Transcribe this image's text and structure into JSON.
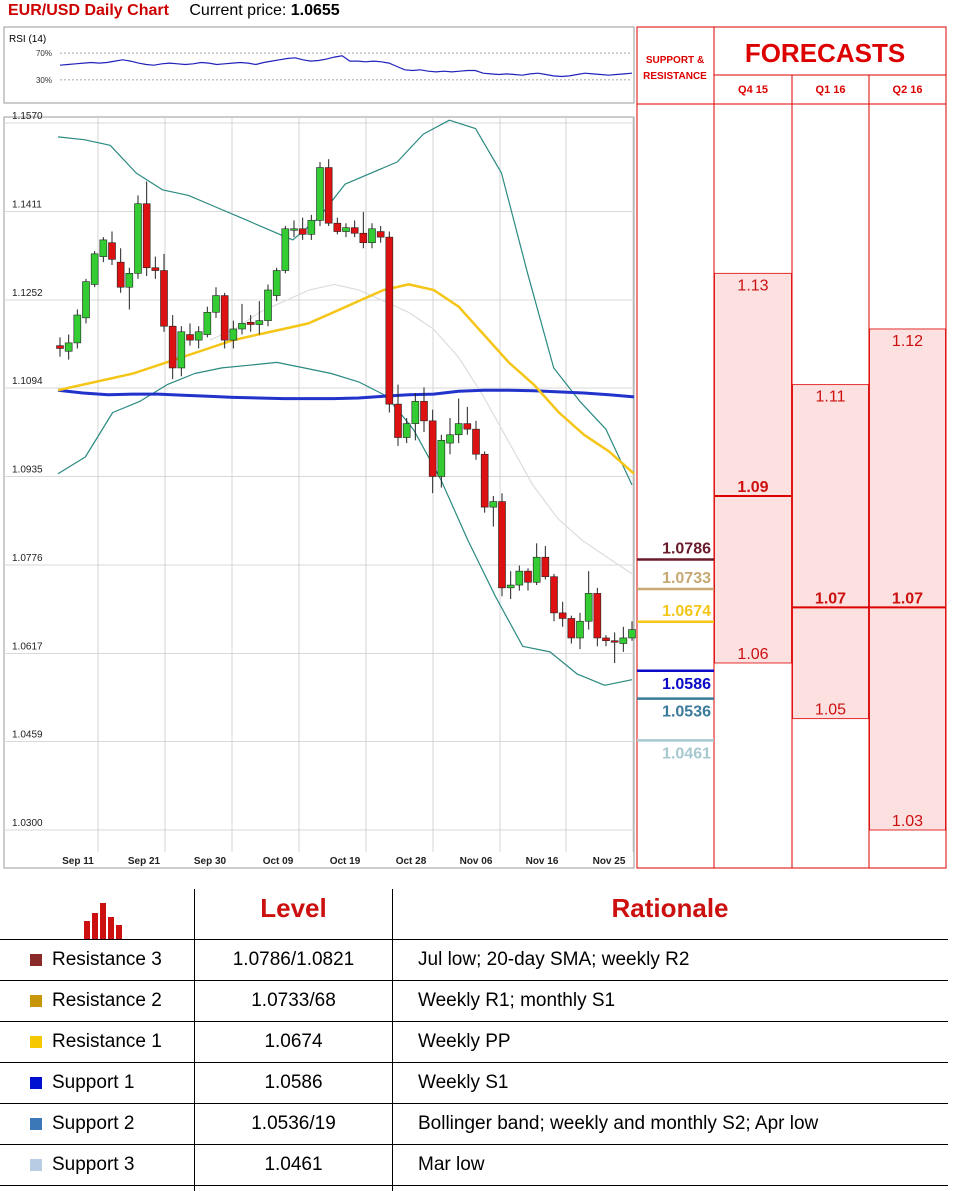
{
  "header": {
    "title": "EUR/USD Daily Chart",
    "price_label": "Current price:",
    "price_value": "1.0655"
  },
  "colors": {
    "bull": "#33cc33",
    "bear": "#dd1111",
    "sma_fast": "#f5c518",
    "sma_slow": "#2233cc",
    "bollinger": "#2a8a80",
    "forecast_red": "#dd0000",
    "forecast_fill": "#fde0e0"
  },
  "chart_data": [
    {
      "type": "line",
      "title": "RSI (14)",
      "y_tick_labels": [
        "70%",
        "30%"
      ],
      "ylim": [
        0,
        100
      ],
      "series": [
        {
          "values": [
            52,
            53,
            54,
            55,
            56,
            55,
            56,
            58,
            60,
            58,
            55,
            53,
            52,
            54,
            55,
            54,
            53,
            54,
            56,
            55,
            53,
            54,
            55,
            56,
            55,
            53,
            56,
            58,
            60,
            62,
            63,
            60,
            58,
            59,
            61,
            64,
            66,
            58,
            58,
            57,
            58,
            57,
            55,
            50,
            45,
            44,
            45,
            43,
            42,
            43,
            42,
            43,
            44,
            44,
            40,
            39,
            38,
            39,
            38,
            37,
            39,
            40,
            38,
            36,
            35,
            36,
            38,
            40,
            39,
            38,
            37,
            38,
            39,
            40
          ]
        }
      ]
    },
    {
      "type": "candlestick",
      "title": "",
      "x_tick_labels": [
        "Sep 11",
        "Sep 21",
        "Sep 30",
        "Oct 09",
        "Oct 19",
        "Oct 28",
        "Nov 06",
        "Nov 16",
        "Nov 25"
      ],
      "y_tick_labels": [
        "1.1570",
        "1.1411",
        "1.1252",
        "1.1094",
        "1.0935",
        "1.0776",
        "1.0617",
        "1.0459",
        "1.0300"
      ],
      "ylim": [
        1.03,
        1.157
      ],
      "candles": [
        {
          "o": 1.117,
          "h": 1.1185,
          "l": 1.115,
          "c": 1.1165
        },
        {
          "o": 1.116,
          "h": 1.119,
          "l": 1.1145,
          "c": 1.1175
        },
        {
          "o": 1.1175,
          "h": 1.1235,
          "l": 1.1165,
          "c": 1.1225
        },
        {
          "o": 1.122,
          "h": 1.129,
          "l": 1.121,
          "c": 1.1285
        },
        {
          "o": 1.128,
          "h": 1.134,
          "l": 1.1275,
          "c": 1.1335
        },
        {
          "o": 1.133,
          "h": 1.1365,
          "l": 1.132,
          "c": 1.136
        },
        {
          "o": 1.1355,
          "h": 1.1375,
          "l": 1.1315,
          "c": 1.1325
        },
        {
          "o": 1.132,
          "h": 1.1345,
          "l": 1.1265,
          "c": 1.1275
        },
        {
          "o": 1.1275,
          "h": 1.131,
          "l": 1.1235,
          "c": 1.13
        },
        {
          "o": 1.13,
          "h": 1.144,
          "l": 1.129,
          "c": 1.1425
        },
        {
          "o": 1.1425,
          "h": 1.1465,
          "l": 1.1295,
          "c": 1.131
        },
        {
          "o": 1.131,
          "h": 1.133,
          "l": 1.129,
          "c": 1.1305
        },
        {
          "o": 1.1305,
          "h": 1.1335,
          "l": 1.1195,
          "c": 1.1205
        },
        {
          "o": 1.1205,
          "h": 1.1225,
          "l": 1.111,
          "c": 1.113
        },
        {
          "o": 1.113,
          "h": 1.1205,
          "l": 1.1115,
          "c": 1.1195
        },
        {
          "o": 1.119,
          "h": 1.121,
          "l": 1.117,
          "c": 1.118
        },
        {
          "o": 1.118,
          "h": 1.1205,
          "l": 1.1165,
          "c": 1.1195
        },
        {
          "o": 1.119,
          "h": 1.124,
          "l": 1.1185,
          "c": 1.123
        },
        {
          "o": 1.123,
          "h": 1.1275,
          "l": 1.122,
          "c": 1.126
        },
        {
          "o": 1.126,
          "h": 1.1265,
          "l": 1.1165,
          "c": 1.118
        },
        {
          "o": 1.118,
          "h": 1.1215,
          "l": 1.1165,
          "c": 1.12
        },
        {
          "o": 1.12,
          "h": 1.1245,
          "l": 1.119,
          "c": 1.121
        },
        {
          "o": 1.1212,
          "h": 1.1225,
          "l": 1.1195,
          "c": 1.1208
        },
        {
          "o": 1.1208,
          "h": 1.125,
          "l": 1.119,
          "c": 1.1215
        },
        {
          "o": 1.1215,
          "h": 1.128,
          "l": 1.1205,
          "c": 1.127
        },
        {
          "o": 1.126,
          "h": 1.131,
          "l": 1.125,
          "c": 1.1305
        },
        {
          "o": 1.1305,
          "h": 1.1385,
          "l": 1.13,
          "c": 1.138
        },
        {
          "o": 1.1378,
          "h": 1.1395,
          "l": 1.1365,
          "c": 1.138
        },
        {
          "o": 1.138,
          "h": 1.14,
          "l": 1.136,
          "c": 1.137
        },
        {
          "o": 1.137,
          "h": 1.1405,
          "l": 1.136,
          "c": 1.1395
        },
        {
          "o": 1.1395,
          "h": 1.15,
          "l": 1.1385,
          "c": 1.149
        },
        {
          "o": 1.149,
          "h": 1.1505,
          "l": 1.1385,
          "c": 1.139
        },
        {
          "o": 1.139,
          "h": 1.14,
          "l": 1.137,
          "c": 1.1375
        },
        {
          "o": 1.1375,
          "h": 1.139,
          "l": 1.1365,
          "c": 1.1382
        },
        {
          "o": 1.1382,
          "h": 1.1395,
          "l": 1.1365,
          "c": 1.1372
        },
        {
          "o": 1.1372,
          "h": 1.141,
          "l": 1.1345,
          "c": 1.1355
        },
        {
          "o": 1.1355,
          "h": 1.139,
          "l": 1.1345,
          "c": 1.138
        },
        {
          "o": 1.1375,
          "h": 1.1385,
          "l": 1.1355,
          "c": 1.1365
        },
        {
          "o": 1.1365,
          "h": 1.1375,
          "l": 1.105,
          "c": 1.1065
        },
        {
          "o": 1.1065,
          "h": 1.11,
          "l": 1.099,
          "c": 1.1005
        },
        {
          "o": 1.1005,
          "h": 1.104,
          "l": 1.0995,
          "c": 1.103
        },
        {
          "o": 1.103,
          "h": 1.1085,
          "l": 1.1,
          "c": 1.107
        },
        {
          "o": 1.107,
          "h": 1.1095,
          "l": 1.1015,
          "c": 1.1035
        },
        {
          "o": 1.1035,
          "h": 1.1055,
          "l": 1.0905,
          "c": 1.0935
        },
        {
          "o": 1.0935,
          "h": 1.101,
          "l": 1.0915,
          "c": 1.1
        },
        {
          "o": 1.0995,
          "h": 1.104,
          "l": 1.0975,
          "c": 1.101
        },
        {
          "o": 1.101,
          "h": 1.1075,
          "l": 1.0995,
          "c": 1.103
        },
        {
          "o": 1.103,
          "h": 1.106,
          "l": 1.101,
          "c": 1.102
        },
        {
          "o": 1.102,
          "h": 1.1035,
          "l": 1.0965,
          "c": 1.0975
        },
        {
          "o": 1.0975,
          "h": 1.098,
          "l": 1.087,
          "c": 1.088
        },
        {
          "o": 1.088,
          "h": 1.09,
          "l": 1.0845,
          "c": 1.089
        },
        {
          "o": 1.089,
          "h": 1.0905,
          "l": 1.072,
          "c": 1.0735
        },
        {
          "o": 1.0735,
          "h": 1.0765,
          "l": 1.0715,
          "c": 1.074
        },
        {
          "o": 1.074,
          "h": 1.0775,
          "l": 1.073,
          "c": 1.0765
        },
        {
          "o": 1.0765,
          "h": 1.077,
          "l": 1.073,
          "c": 1.0745
        },
        {
          "o": 1.0745,
          "h": 1.0815,
          "l": 1.074,
          "c": 1.079
        },
        {
          "o": 1.079,
          "h": 1.081,
          "l": 1.075,
          "c": 1.0755
        },
        {
          "o": 1.0755,
          "h": 1.076,
          "l": 1.0675,
          "c": 1.069
        },
        {
          "o": 1.069,
          "h": 1.071,
          "l": 1.0665,
          "c": 1.068
        },
        {
          "o": 1.068,
          "h": 1.0685,
          "l": 1.0635,
          "c": 1.0645
        },
        {
          "o": 1.0645,
          "h": 1.069,
          "l": 1.0625,
          "c": 1.0675
        },
        {
          "o": 1.0675,
          "h": 1.0765,
          "l": 1.066,
          "c": 1.0725
        },
        {
          "o": 1.0725,
          "h": 1.0735,
          "l": 1.063,
          "c": 1.0645
        },
        {
          "o": 1.0645,
          "h": 1.065,
          "l": 1.063,
          "c": 1.064
        },
        {
          "o": 1.064,
          "h": 1.0655,
          "l": 1.06,
          "c": 1.0638
        },
        {
          "o": 1.0635,
          "h": 1.0665,
          "l": 1.062,
          "c": 1.0645
        },
        {
          "o": 1.0645,
          "h": 1.0675,
          "l": 1.064,
          "c": 1.066
        }
      ],
      "sma_fast": [
        1.109,
        1.11,
        1.111,
        1.112,
        1.1135,
        1.115,
        1.1165,
        1.118,
        1.119,
        1.12,
        1.121,
        1.123,
        1.125,
        1.127,
        1.128,
        1.127,
        1.124,
        1.119,
        1.114,
        1.11,
        1.105,
        1.101,
        1.098,
        1.094
      ],
      "sma_slow": [
        1.109,
        1.1085,
        1.1082,
        1.1083,
        1.1083,
        1.1081,
        1.1079,
        1.1077,
        1.1076,
        1.1075,
        1.1075,
        1.1075,
        1.1076,
        1.1079,
        1.1082,
        1.1083,
        1.1088,
        1.109,
        1.109,
        1.1089,
        1.1087,
        1.1085,
        1.1082,
        1.1078
      ],
      "boll_upper": [
        1.1545,
        1.154,
        1.153,
        1.148,
        1.145,
        1.144,
        1.142,
        1.14,
        1.138,
        1.136,
        1.14,
        1.146,
        1.148,
        1.15,
        1.155,
        1.1575,
        1.156,
        1.148,
        1.13,
        1.113,
        1.107,
        1.102,
        1.092
      ],
      "boll_lower": [
        1.094,
        1.097,
        1.105,
        1.107,
        1.11,
        1.112,
        1.113,
        1.1135,
        1.114,
        1.113,
        1.112,
        1.1105,
        1.108,
        1.102,
        1.093,
        1.082,
        1.072,
        1.063,
        1.062,
        1.058,
        1.056,
        1.057
      ],
      "sma_thin": [
        1.118,
        1.12,
        1.123,
        1.125,
        1.127,
        1.128,
        1.127,
        1.125,
        1.123,
        1.12,
        1.115,
        1.108,
        1.1,
        1.092,
        1.086,
        1.082,
        1.079,
        1.076
      ]
    },
    {
      "type": "bar",
      "title": "FORECASTS",
      "support_resistance_header": "SUPPORT & RESISTANCE",
      "levels": [
        {
          "label": "1.0786",
          "value": 1.0786,
          "color": "#6a1b2a"
        },
        {
          "label": "1.0733",
          "value": 1.0733,
          "color": "#c8a872"
        },
        {
          "label": "1.0674",
          "value": 1.0674,
          "color": "#f5c518"
        },
        {
          "label": "1.0586",
          "value": 1.0586,
          "color": "#0a0ac8"
        },
        {
          "label": "1.0536",
          "value": 1.0536,
          "color": "#3a7a9a"
        },
        {
          "label": "1.0461",
          "value": 1.0461,
          "color": "#a8c8d0"
        }
      ],
      "quarters": [
        {
          "name": "Q4 15",
          "high": 1.13,
          "mid": 1.09,
          "low": 1.06,
          "high_label": "1.13",
          "mid_label": "1.09",
          "low_label": "1.06"
        },
        {
          "name": "Q1 16",
          "high": 1.11,
          "mid": 1.07,
          "low": 1.05,
          "high_label": "1.11",
          "mid_label": "1.07",
          "low_label": "1.05"
        },
        {
          "name": "Q2 16",
          "high": 1.12,
          "mid": 1.07,
          "low": 1.03,
          "high_label": "1.12",
          "mid_label": "1.07",
          "low_label": "1.03"
        }
      ]
    }
  ],
  "table": {
    "header_level": "Level",
    "header_rationale": "Rationale",
    "rows": [
      {
        "name": "Resistance 3",
        "level": "1.0786/1.0821",
        "rationale": "Jul low; 20-day SMA; weekly R2",
        "color": "#8b2a2a"
      },
      {
        "name": "Resistance 2",
        "level": "1.0733/68",
        "rationale": "Weekly R1; monthly S1",
        "color": "#c8960a"
      },
      {
        "name": "Resistance 1",
        "level": "1.0674",
        "rationale": "Weekly PP",
        "color": "#f5c800"
      },
      {
        "name": "Support 1",
        "level": "1.0586",
        "rationale": "Weekly S1",
        "color": "#0010d0"
      },
      {
        "name": "Support 2",
        "level": "1.0536/19",
        "rationale": "Bollinger band; weekly and monthly S2; Apr low",
        "color": "#3a78b8"
      },
      {
        "name": "Support 3",
        "level": "1.0461",
        "rationale": "Mar low",
        "color": "#b8cce4"
      }
    ]
  }
}
